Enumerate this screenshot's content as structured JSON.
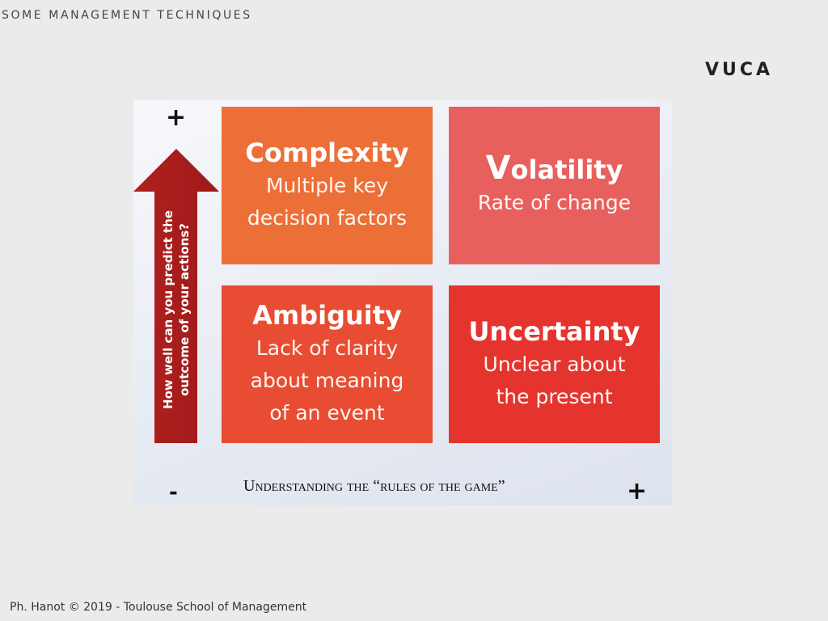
{
  "header": {
    "section": "SOME MANAGEMENT TECHNIQUES"
  },
  "slide": {
    "title": "VUCA"
  },
  "footer": {
    "credit": "Ph. Hanot © 2019  -  Toulouse School of Management"
  },
  "diagram": {
    "y_axis": {
      "label_line1": "How well can you predict the",
      "label_line2": "outcome of your actions?",
      "top_sign": "+"
    },
    "x_axis": {
      "label_first_letter": "U",
      "label_rest": "nderstanding the “rules of the game”",
      "left_sign": "-",
      "right_sign": "+"
    },
    "tiles": [
      {
        "title": "Complexity",
        "line1": "Multiple key",
        "line2": "decision factors",
        "line3": "",
        "color": "#ec6f37"
      },
      {
        "title_first": "V",
        "title_rest": "olatility",
        "line1": "Rate of change",
        "line2": "",
        "line3": "",
        "color": "#e8605e"
      },
      {
        "title": "Ambiguity",
        "line1": "Lack of clarity",
        "line2": "about meaning",
        "line3": "of an event",
        "color": "#e84c32"
      },
      {
        "title": "Uncertainty",
        "line1": "Unclear about",
        "line2": "the present",
        "line3": "",
        "color": "#e5342e"
      }
    ],
    "arrow_color": "#b0201f"
  }
}
